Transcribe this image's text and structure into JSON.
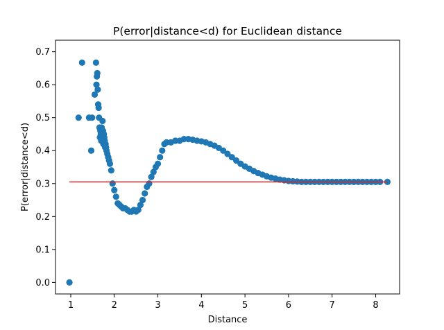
{
  "chart_data": {
    "type": "scatter",
    "title": "P(error|distance<d) for Euclidean distance",
    "xlabel": "Distance",
    "ylabel": "P(error|distance<d)",
    "xlim": [
      0.65,
      8.55
    ],
    "ylim": [
      -0.035,
      0.735
    ],
    "xticks": [
      1,
      2,
      3,
      4,
      5,
      6,
      7,
      8
    ],
    "yticks": [
      0.0,
      0.1,
      0.2,
      0.3,
      0.4,
      0.5,
      0.6,
      0.7
    ],
    "ytick_labels": [
      "0.0",
      "0.1",
      "0.2",
      "0.3",
      "0.4",
      "0.5",
      "0.6",
      "0.7"
    ],
    "grid": false,
    "colors": {
      "points": "#1f77b4",
      "baseline": "#d62728"
    },
    "baseline": {
      "y": 0.305,
      "x_start": 0.97,
      "x_end": 8.27
    },
    "series": [
      {
        "x": [
          0.97,
          1.18,
          1.26,
          1.42,
          1.47,
          1.49,
          1.55,
          1.58,
          1.59,
          1.6,
          1.61,
          1.62,
          1.63,
          1.64,
          1.65,
          1.66,
          1.67,
          1.68,
          1.69,
          1.7,
          1.71,
          1.72,
          1.73,
          1.74,
          1.75,
          1.76,
          1.77,
          1.78,
          1.79,
          1.8,
          1.81,
          1.82,
          1.84,
          1.86,
          1.88,
          1.9,
          1.93,
          1.96,
          2.0,
          2.04,
          2.08,
          2.12,
          2.16,
          2.2,
          2.25,
          2.3,
          2.35,
          2.4,
          2.45,
          2.5,
          2.55,
          2.6,
          2.65,
          2.7,
          2.75,
          2.8,
          2.85,
          2.9,
          2.95,
          3.0,
          3.05,
          3.1,
          3.15,
          3.2,
          3.3,
          3.4,
          3.5,
          3.6,
          3.7,
          3.8,
          3.9,
          4.0,
          4.1,
          4.2,
          4.3,
          4.4,
          4.5,
          4.6,
          4.7,
          4.8,
          4.9,
          5.0,
          5.1,
          5.2,
          5.3,
          5.4,
          5.5,
          5.6,
          5.7,
          5.8,
          5.9,
          6.0,
          6.1,
          6.2,
          6.3,
          6.4,
          6.5,
          6.6,
          6.7,
          6.8,
          6.9,
          7.0,
          7.1,
          7.2,
          7.3,
          7.4,
          7.5,
          7.6,
          7.7,
          7.8,
          7.9,
          8.0,
          8.1,
          8.27
        ],
        "y": [
          0.0,
          0.5,
          0.667,
          0.5,
          0.4,
          0.5,
          0.57,
          0.667,
          0.6,
          0.625,
          0.635,
          0.585,
          0.54,
          0.53,
          0.5,
          0.47,
          0.44,
          0.46,
          0.45,
          0.43,
          0.47,
          0.44,
          0.49,
          0.46,
          0.42,
          0.45,
          0.44,
          0.43,
          0.41,
          0.42,
          0.41,
          0.4,
          0.39,
          0.38,
          0.37,
          0.36,
          0.34,
          0.3,
          0.28,
          0.26,
          0.24,
          0.235,
          0.23,
          0.225,
          0.225,
          0.22,
          0.215,
          0.215,
          0.22,
          0.215,
          0.22,
          0.235,
          0.25,
          0.27,
          0.29,
          0.3,
          0.32,
          0.335,
          0.35,
          0.36,
          0.38,
          0.4,
          0.42,
          0.425,
          0.425,
          0.43,
          0.43,
          0.435,
          0.435,
          0.433,
          0.43,
          0.428,
          0.425,
          0.42,
          0.415,
          0.408,
          0.4,
          0.39,
          0.38,
          0.37,
          0.36,
          0.352,
          0.345,
          0.338,
          0.332,
          0.327,
          0.322,
          0.318,
          0.315,
          0.312,
          0.31,
          0.308,
          0.307,
          0.306,
          0.305,
          0.305,
          0.305,
          0.305,
          0.305,
          0.305,
          0.305,
          0.305,
          0.305,
          0.305,
          0.305,
          0.305,
          0.305,
          0.305,
          0.305,
          0.305,
          0.305,
          0.305,
          0.305,
          0.305
        ]
      }
    ]
  }
}
